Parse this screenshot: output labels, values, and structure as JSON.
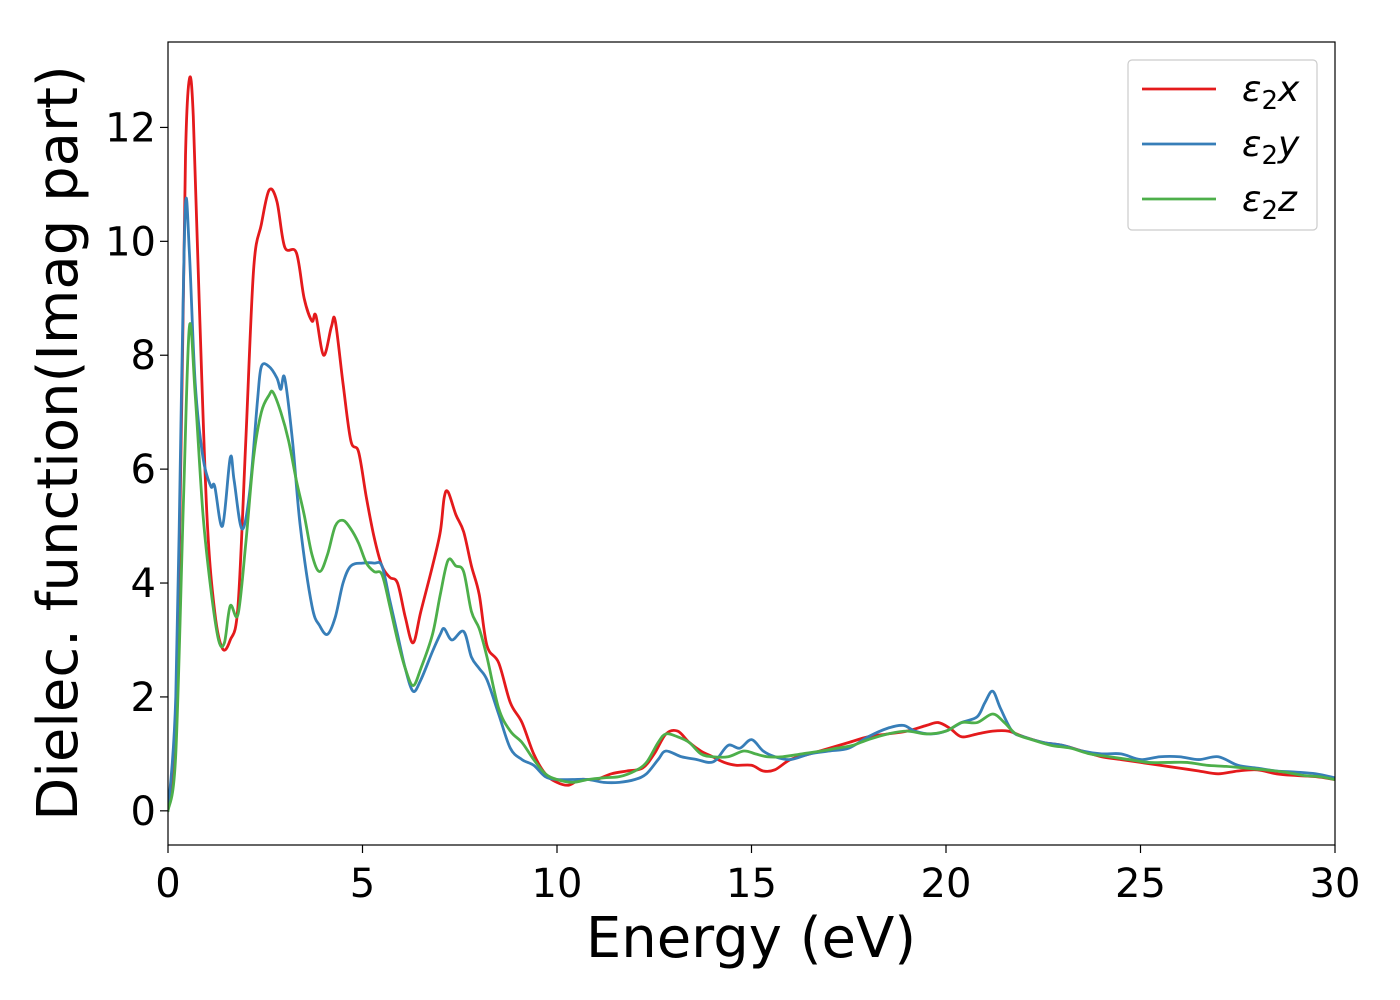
{
  "chart_data": {
    "type": "line",
    "title": "",
    "xlabel": "Energy (eV)",
    "ylabel": "Dielec. function(Imag part)",
    "xlim": [
      0,
      30
    ],
    "ylim": [
      -0.6,
      13.5
    ],
    "xticks": [
      0,
      5,
      10,
      15,
      20,
      25,
      30
    ],
    "yticks": [
      0,
      2,
      4,
      6,
      8,
      10,
      12
    ],
    "grid": false,
    "legend_position": "top-right",
    "series": [
      {
        "name": "ε₂x",
        "legend_base": "ε",
        "legend_sub": "2",
        "legend_suffix": "x",
        "color": "#e41a1c",
        "points": [
          [
            0,
            0
          ],
          [
            0.2,
            1.5
          ],
          [
            0.35,
            7.0
          ],
          [
            0.45,
            11.5
          ],
          [
            0.55,
            12.85
          ],
          [
            0.65,
            12.2
          ],
          [
            0.8,
            9.0
          ],
          [
            1.0,
            5.2
          ],
          [
            1.2,
            3.5
          ],
          [
            1.4,
            2.85
          ],
          [
            1.6,
            3.0
          ],
          [
            1.8,
            3.6
          ],
          [
            2.0,
            6.5
          ],
          [
            2.2,
            9.5
          ],
          [
            2.4,
            10.3
          ],
          [
            2.6,
            10.9
          ],
          [
            2.8,
            10.7
          ],
          [
            3.0,
            9.9
          ],
          [
            3.3,
            9.8
          ],
          [
            3.5,
            9.0
          ],
          [
            3.7,
            8.6
          ],
          [
            3.8,
            8.7
          ],
          [
            4.0,
            8.0
          ],
          [
            4.2,
            8.5
          ],
          [
            4.3,
            8.6
          ],
          [
            4.5,
            7.5
          ],
          [
            4.7,
            6.5
          ],
          [
            4.9,
            6.3
          ],
          [
            5.1,
            5.5
          ],
          [
            5.3,
            4.8
          ],
          [
            5.5,
            4.3
          ],
          [
            5.7,
            4.1
          ],
          [
            5.9,
            4.0
          ],
          [
            6.1,
            3.4
          ],
          [
            6.3,
            2.95
          ],
          [
            6.5,
            3.5
          ],
          [
            6.8,
            4.3
          ],
          [
            7.0,
            4.9
          ],
          [
            7.1,
            5.5
          ],
          [
            7.2,
            5.6
          ],
          [
            7.4,
            5.2
          ],
          [
            7.6,
            4.9
          ],
          [
            7.8,
            4.3
          ],
          [
            8.0,
            3.8
          ],
          [
            8.2,
            2.9
          ],
          [
            8.5,
            2.6
          ],
          [
            8.8,
            1.9
          ],
          [
            9.1,
            1.55
          ],
          [
            9.4,
            1.0
          ],
          [
            9.7,
            0.65
          ],
          [
            10.0,
            0.5
          ],
          [
            10.3,
            0.45
          ],
          [
            10.6,
            0.55
          ],
          [
            11.0,
            0.55
          ],
          [
            11.4,
            0.65
          ],
          [
            11.8,
            0.7
          ],
          [
            12.2,
            0.75
          ],
          [
            12.5,
            1.0
          ],
          [
            12.8,
            1.35
          ],
          [
            13.1,
            1.4
          ],
          [
            13.4,
            1.2
          ],
          [
            13.7,
            1.05
          ],
          [
            14.0,
            0.95
          ],
          [
            14.3,
            0.85
          ],
          [
            14.6,
            0.8
          ],
          [
            15.0,
            0.8
          ],
          [
            15.3,
            0.7
          ],
          [
            15.6,
            0.72
          ],
          [
            16.0,
            0.9
          ],
          [
            16.5,
            1.0
          ],
          [
            17.0,
            1.1
          ],
          [
            17.5,
            1.2
          ],
          [
            18.0,
            1.3
          ],
          [
            18.5,
            1.35
          ],
          [
            19.0,
            1.4
          ],
          [
            19.5,
            1.5
          ],
          [
            19.8,
            1.55
          ],
          [
            20.1,
            1.45
          ],
          [
            20.4,
            1.3
          ],
          [
            20.8,
            1.35
          ],
          [
            21.2,
            1.4
          ],
          [
            21.6,
            1.4
          ],
          [
            22.0,
            1.3
          ],
          [
            22.5,
            1.2
          ],
          [
            23.0,
            1.15
          ],
          [
            23.5,
            1.05
          ],
          [
            24.0,
            0.95
          ],
          [
            24.5,
            0.9
          ],
          [
            25.0,
            0.85
          ],
          [
            25.5,
            0.8
          ],
          [
            26.0,
            0.75
          ],
          [
            26.5,
            0.7
          ],
          [
            27.0,
            0.65
          ],
          [
            27.5,
            0.7
          ],
          [
            28.0,
            0.72
          ],
          [
            28.5,
            0.65
          ],
          [
            29.0,
            0.62
          ],
          [
            29.5,
            0.6
          ],
          [
            30.0,
            0.55
          ]
        ]
      },
      {
        "name": "ε₂y",
        "legend_base": "ε",
        "legend_sub": "2",
        "legend_suffix": "y",
        "color": "#377eb8",
        "points": [
          [
            0,
            0
          ],
          [
            0.2,
            2.0
          ],
          [
            0.35,
            7.5
          ],
          [
            0.45,
            10.65
          ],
          [
            0.55,
            9.8
          ],
          [
            0.7,
            7.5
          ],
          [
            0.9,
            6.2
          ],
          [
            1.1,
            5.7
          ],
          [
            1.2,
            5.7
          ],
          [
            1.4,
            5.0
          ],
          [
            1.6,
            6.2
          ],
          [
            1.7,
            5.8
          ],
          [
            1.9,
            4.95
          ],
          [
            2.1,
            5.6
          ],
          [
            2.3,
            7.2
          ],
          [
            2.4,
            7.8
          ],
          [
            2.6,
            7.8
          ],
          [
            2.8,
            7.6
          ],
          [
            2.9,
            7.4
          ],
          [
            3.0,
            7.6
          ],
          [
            3.2,
            6.5
          ],
          [
            3.4,
            5.0
          ],
          [
            3.7,
            3.6
          ],
          [
            3.9,
            3.25
          ],
          [
            4.1,
            3.1
          ],
          [
            4.3,
            3.4
          ],
          [
            4.5,
            4.0
          ],
          [
            4.7,
            4.3
          ],
          [
            5.0,
            4.35
          ],
          [
            5.3,
            4.35
          ],
          [
            5.5,
            4.3
          ],
          [
            5.7,
            3.7
          ],
          [
            5.9,
            3.1
          ],
          [
            6.1,
            2.5
          ],
          [
            6.3,
            2.1
          ],
          [
            6.5,
            2.3
          ],
          [
            6.8,
            2.8
          ],
          [
            7.0,
            3.1
          ],
          [
            7.1,
            3.2
          ],
          [
            7.3,
            3.0
          ],
          [
            7.6,
            3.15
          ],
          [
            7.8,
            2.7
          ],
          [
            8.0,
            2.5
          ],
          [
            8.2,
            2.3
          ],
          [
            8.5,
            1.7
          ],
          [
            8.8,
            1.1
          ],
          [
            9.1,
            0.9
          ],
          [
            9.4,
            0.8
          ],
          [
            9.7,
            0.6
          ],
          [
            10.0,
            0.55
          ],
          [
            10.4,
            0.55
          ],
          [
            10.8,
            0.55
          ],
          [
            11.2,
            0.5
          ],
          [
            11.6,
            0.5
          ],
          [
            12.0,
            0.55
          ],
          [
            12.3,
            0.65
          ],
          [
            12.6,
            0.9
          ],
          [
            12.8,
            1.05
          ],
          [
            13.2,
            0.95
          ],
          [
            13.6,
            0.9
          ],
          [
            13.9,
            0.85
          ],
          [
            14.1,
            0.9
          ],
          [
            14.4,
            1.15
          ],
          [
            14.7,
            1.1
          ],
          [
            15.0,
            1.25
          ],
          [
            15.3,
            1.05
          ],
          [
            15.6,
            0.95
          ],
          [
            16.0,
            0.9
          ],
          [
            16.5,
            1.0
          ],
          [
            17.0,
            1.05
          ],
          [
            17.5,
            1.1
          ],
          [
            18.0,
            1.3
          ],
          [
            18.5,
            1.45
          ],
          [
            18.9,
            1.5
          ],
          [
            19.2,
            1.4
          ],
          [
            19.6,
            1.35
          ],
          [
            20.0,
            1.4
          ],
          [
            20.4,
            1.55
          ],
          [
            20.8,
            1.65
          ],
          [
            21.0,
            1.9
          ],
          [
            21.2,
            2.1
          ],
          [
            21.4,
            1.8
          ],
          [
            21.7,
            1.4
          ],
          [
            22.0,
            1.3
          ],
          [
            22.5,
            1.2
          ],
          [
            23.0,
            1.15
          ],
          [
            23.5,
            1.05
          ],
          [
            24.0,
            1.0
          ],
          [
            24.5,
            1.0
          ],
          [
            25.0,
            0.9
          ],
          [
            25.5,
            0.95
          ],
          [
            26.0,
            0.95
          ],
          [
            26.5,
            0.9
          ],
          [
            27.0,
            0.95
          ],
          [
            27.5,
            0.8
          ],
          [
            28.0,
            0.75
          ],
          [
            28.5,
            0.7
          ],
          [
            29.0,
            0.68
          ],
          [
            29.5,
            0.65
          ],
          [
            30.0,
            0.58
          ]
        ]
      },
      {
        "name": "ε₂z",
        "legend_base": "ε",
        "legend_sub": "2",
        "legend_suffix": "z",
        "color": "#4daf4a",
        "points": [
          [
            0,
            0
          ],
          [
            0.2,
            1.0
          ],
          [
            0.4,
            5.5
          ],
          [
            0.55,
            8.5
          ],
          [
            0.7,
            7.3
          ],
          [
            0.9,
            5.2
          ],
          [
            1.1,
            3.9
          ],
          [
            1.3,
            3.0
          ],
          [
            1.45,
            2.95
          ],
          [
            1.6,
            3.6
          ],
          [
            1.8,
            3.45
          ],
          [
            2.0,
            4.7
          ],
          [
            2.2,
            6.2
          ],
          [
            2.4,
            7.0
          ],
          [
            2.6,
            7.3
          ],
          [
            2.7,
            7.35
          ],
          [
            2.9,
            7.0
          ],
          [
            3.1,
            6.5
          ],
          [
            3.3,
            5.8
          ],
          [
            3.5,
            5.2
          ],
          [
            3.7,
            4.5
          ],
          [
            3.9,
            4.2
          ],
          [
            4.1,
            4.5
          ],
          [
            4.3,
            5.0
          ],
          [
            4.5,
            5.1
          ],
          [
            4.7,
            4.95
          ],
          [
            4.9,
            4.7
          ],
          [
            5.1,
            4.35
          ],
          [
            5.3,
            4.2
          ],
          [
            5.5,
            4.15
          ],
          [
            5.7,
            3.6
          ],
          [
            5.9,
            3.0
          ],
          [
            6.1,
            2.5
          ],
          [
            6.3,
            2.2
          ],
          [
            6.5,
            2.5
          ],
          [
            6.8,
            3.1
          ],
          [
            7.0,
            3.8
          ],
          [
            7.2,
            4.4
          ],
          [
            7.4,
            4.3
          ],
          [
            7.6,
            4.2
          ],
          [
            7.8,
            3.5
          ],
          [
            8.0,
            3.2
          ],
          [
            8.2,
            2.7
          ],
          [
            8.5,
            1.8
          ],
          [
            8.8,
            1.4
          ],
          [
            9.1,
            1.2
          ],
          [
            9.4,
            0.9
          ],
          [
            9.7,
            0.65
          ],
          [
            10.0,
            0.55
          ],
          [
            10.4,
            0.5
          ],
          [
            10.8,
            0.55
          ],
          [
            11.2,
            0.58
          ],
          [
            11.6,
            0.6
          ],
          [
            12.0,
            0.7
          ],
          [
            12.3,
            0.85
          ],
          [
            12.6,
            1.2
          ],
          [
            12.8,
            1.35
          ],
          [
            13.1,
            1.3
          ],
          [
            13.4,
            1.2
          ],
          [
            13.7,
            1.0
          ],
          [
            14.0,
            0.95
          ],
          [
            14.4,
            0.95
          ],
          [
            14.8,
            1.05
          ],
          [
            15.1,
            1.0
          ],
          [
            15.4,
            0.95
          ],
          [
            15.8,
            0.95
          ],
          [
            16.3,
            1.0
          ],
          [
            16.8,
            1.05
          ],
          [
            17.2,
            1.1
          ],
          [
            17.6,
            1.15
          ],
          [
            18.0,
            1.25
          ],
          [
            18.5,
            1.35
          ],
          [
            19.0,
            1.4
          ],
          [
            19.5,
            1.35
          ],
          [
            20.0,
            1.4
          ],
          [
            20.4,
            1.55
          ],
          [
            20.8,
            1.55
          ],
          [
            21.2,
            1.7
          ],
          [
            21.5,
            1.55
          ],
          [
            21.8,
            1.35
          ],
          [
            22.2,
            1.25
          ],
          [
            22.7,
            1.15
          ],
          [
            23.2,
            1.1
          ],
          [
            23.7,
            1.0
          ],
          [
            24.2,
            0.95
          ],
          [
            24.7,
            0.9
          ],
          [
            25.2,
            0.85
          ],
          [
            25.7,
            0.85
          ],
          [
            26.2,
            0.85
          ],
          [
            26.7,
            0.8
          ],
          [
            27.2,
            0.78
          ],
          [
            27.7,
            0.75
          ],
          [
            28.2,
            0.72
          ],
          [
            28.7,
            0.68
          ],
          [
            29.2,
            0.62
          ],
          [
            29.6,
            0.6
          ],
          [
            30.0,
            0.55
          ]
        ]
      }
    ]
  }
}
